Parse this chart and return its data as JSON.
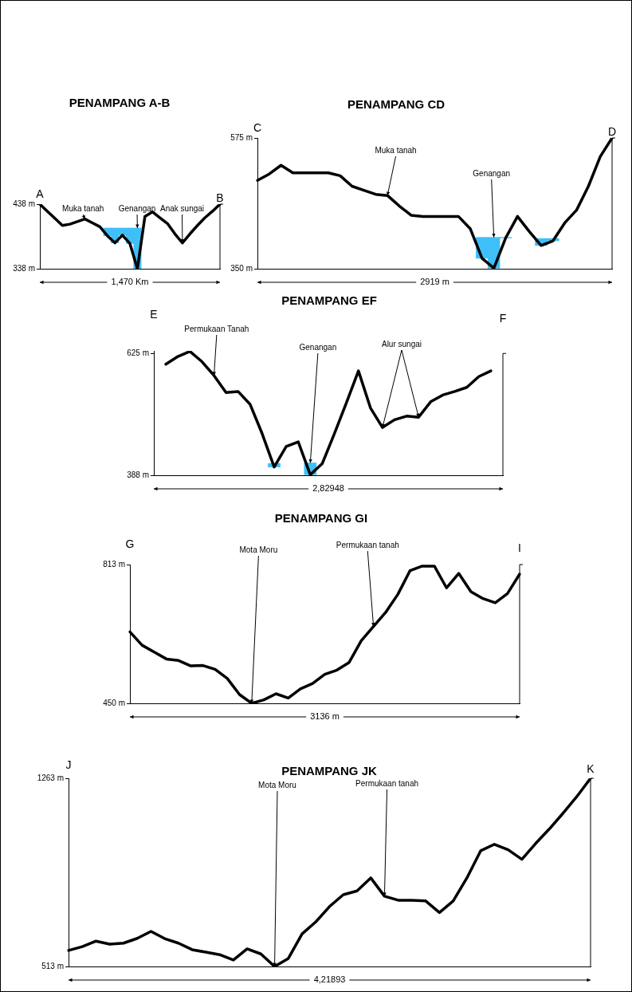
{
  "chart_data": [
    {
      "type": "line",
      "title": "PENAMPANG A-B",
      "xlabel": "1,470 Km",
      "marker": "none",
      "line_style": "solid",
      "tick_labels": "y",
      "categories": [
        null,
        null,
        null,
        null,
        null,
        null,
        null,
        null,
        null,
        null,
        null,
        null,
        null,
        null,
        null,
        null,
        null,
        null,
        null,
        null,
        null,
        null,
        null,
        null,
        null
      ],
      "series": [
        {
          "color": "#000000",
          "values": [
            438,
            427,
            416,
            405,
            407,
            411,
            415,
            409,
            403,
            389,
            378,
            390,
            377,
            338,
            419,
            426,
            417,
            408,
            392,
            378,
            392,
            405,
            417,
            427,
            438
          ]
        },
        {
          "type": "bar",
          "color": "#3fbff8",
          "base": [
            null,
            null,
            null,
            null,
            null,
            null,
            null,
            null,
            null,
            389,
            378,
            390,
            377,
            338,
            null,
            null,
            null,
            null,
            null,
            null,
            null,
            null,
            null,
            null,
            null
          ],
          "values": [
            null,
            null,
            null,
            null,
            null,
            null,
            null,
            null,
            null,
            12,
            23,
            11,
            24,
            63,
            null,
            null,
            null,
            null,
            null,
            null,
            null,
            null,
            null,
            null,
            null
          ]
        }
      ],
      "ylim": [
        338,
        438
      ],
      "yticks": [
        {
          "value": 338,
          "label": "338 m"
        },
        {
          "value": 438,
          "label": "438 m"
        }
      ],
      "annotations": [
        "A",
        "B",
        "Muka tanah",
        "Genangan",
        "Anak sungai"
      ]
    },
    {
      "type": "line",
      "title": "PENAMPANG CD",
      "xlabel": "2919 m",
      "marker": "none",
      "line_style": "solid",
      "tick_labels": "y",
      "categories": [
        null,
        null,
        null,
        null,
        null,
        null,
        null,
        null,
        null,
        null,
        null,
        null,
        null,
        null,
        null,
        null,
        null,
        null,
        null,
        null,
        null,
        null,
        null,
        null,
        null,
        null,
        null,
        null,
        null,
        null,
        null
      ],
      "series": [
        {
          "color": "#000000",
          "values": [
            502,
            513,
            528,
            515,
            515,
            515,
            515,
            510,
            492,
            485,
            478,
            476,
            458,
            442,
            440,
            440,
            440,
            440,
            419,
            368,
            351,
            403,
            440,
            414,
            390,
            398,
            429,
            451,
            492,
            543,
            575
          ]
        },
        {
          "type": "bar",
          "color": "#3fbff8",
          "base": [
            null,
            null,
            null,
            null,
            null,
            null,
            null,
            null,
            null,
            null,
            null,
            null,
            null,
            null,
            null,
            null,
            null,
            null,
            null,
            368,
            351,
            403,
            null,
            null,
            390,
            398,
            null,
            null,
            null,
            null,
            null
          ],
          "values": [
            null,
            null,
            null,
            null,
            null,
            null,
            null,
            null,
            null,
            null,
            null,
            null,
            null,
            null,
            null,
            null,
            null,
            null,
            null,
            36,
            53,
            1,
            null,
            null,
            12,
            4,
            null,
            null,
            null,
            null,
            null
          ]
        }
      ],
      "ylim": [
        350,
        575
      ],
      "yticks": [
        {
          "value": 350,
          "label": "350 m"
        },
        {
          "value": 575,
          "label": "575 m"
        }
      ],
      "annotations": [
        "C",
        "D",
        "Muka tanah",
        "Genangan"
      ]
    },
    {
      "type": "line",
      "title": "PENAMPANG EF",
      "xlabel": "2,82948",
      "marker": "none",
      "line_style": "solid",
      "tick_labels": "y",
      "categories": [
        null,
        null,
        null,
        null,
        null,
        null,
        null,
        null,
        null,
        null,
        null,
        null,
        null,
        null,
        null,
        null,
        null,
        null,
        null,
        null,
        null,
        null,
        null,
        null,
        null,
        null,
        null,
        null,
        null,
        null
      ],
      "series": [
        {
          "color": "#000000",
          "values": [
            null,
            604,
            619,
            629,
            609,
            582,
            549,
            551,
            526,
            469,
            404,
            444,
            453,
            389,
            411,
            469,
            529,
            591,
            519,
            481,
            496,
            503,
            501,
            531,
            544,
            551,
            559,
            580,
            591,
            null
          ]
        },
        {
          "type": "bar",
          "color": "#3fbff8",
          "base": [
            null,
            null,
            null,
            null,
            null,
            null,
            null,
            null,
            null,
            null,
            404,
            null,
            null,
            389,
            null,
            null,
            null,
            null,
            null,
            null,
            null,
            null,
            null,
            null,
            null,
            null,
            null,
            null,
            null,
            null
          ],
          "values": [
            null,
            null,
            null,
            null,
            null,
            null,
            null,
            null,
            null,
            null,
            7,
            null,
            null,
            23,
            null,
            null,
            null,
            null,
            null,
            null,
            null,
            null,
            null,
            null,
            null,
            null,
            null,
            null,
            null,
            null
          ]
        }
      ],
      "ylim": [
        388,
        630
      ],
      "yticks": [
        {
          "value": 388,
          "label": "388 m"
        },
        {
          "value": 625,
          "label": "625 m"
        }
      ],
      "annotations": [
        "E",
        "F",
        "Permukaan Tanah",
        "Genangan",
        "Alur sungai"
      ]
    },
    {
      "type": "line",
      "title": "PENAMPANG GI",
      "xlabel": "3136 m",
      "marker": "none",
      "line_style": "solid",
      "tick_labels": "y",
      "categories": [
        null,
        null,
        null,
        null,
        null,
        null,
        null,
        null,
        null,
        null,
        null,
        null,
        null,
        null,
        null,
        null,
        null,
        null,
        null,
        null,
        null,
        null,
        null,
        null,
        null,
        null,
        null,
        null,
        null,
        null,
        null,
        null,
        null
      ],
      "series": [
        {
          "color": "#000000",
          "values": [
            637,
            602,
            584,
            566,
            562,
            548,
            549,
            539,
            515,
            473,
            450,
            459,
            475,
            464,
            488,
            502,
            526,
            537,
            557,
            614,
            651,
            688,
            735,
            797,
            809,
            809,
            752,
            790,
            742,
            724,
            713,
            737,
            788
          ]
        }
      ],
      "ylim": [
        450,
        813
      ],
      "yticks": [
        {
          "value": 450,
          "label": "450 m"
        },
        {
          "value": 813,
          "label": "813 m"
        }
      ],
      "annotations": [
        "G",
        "I",
        "Mota Moru",
        "Permukaan tanah"
      ]
    },
    {
      "type": "line",
      "title": "PENAMPANG JK",
      "xlabel": "4,21893",
      "marker": "none",
      "line_style": "solid",
      "tick_labels": "y",
      "categories": [
        null,
        null,
        null,
        null,
        null,
        null,
        null,
        null,
        null,
        null,
        null,
        null,
        null,
        null,
        null,
        null,
        null,
        null,
        null,
        null,
        null,
        null,
        null,
        null,
        null,
        null,
        null,
        null,
        null,
        null,
        null,
        null,
        null,
        null,
        null,
        null,
        null,
        null,
        null
      ],
      "series": [
        {
          "color": "#000000",
          "values": [
            577,
            592,
            614,
            602,
            606,
            625,
            653,
            624,
            606,
            580,
            570,
            560,
            539,
            583,
            563,
            513,
            545,
            643,
            691,
            752,
            799,
            814,
            866,
            793,
            777,
            777,
            774,
            728,
            774,
            866,
            974,
            1000,
            978,
            940,
            1003,
            1061,
            1124,
            1190,
            1263
          ]
        }
      ],
      "ylim": [
        513,
        1263
      ],
      "yticks": [
        {
          "value": 513,
          "label": "513 m"
        },
        {
          "value": 1263,
          "label": "1263 m"
        }
      ],
      "annotations": [
        "J",
        "K",
        "Mota Moru",
        "Permukaan tanah"
      ]
    }
  ]
}
